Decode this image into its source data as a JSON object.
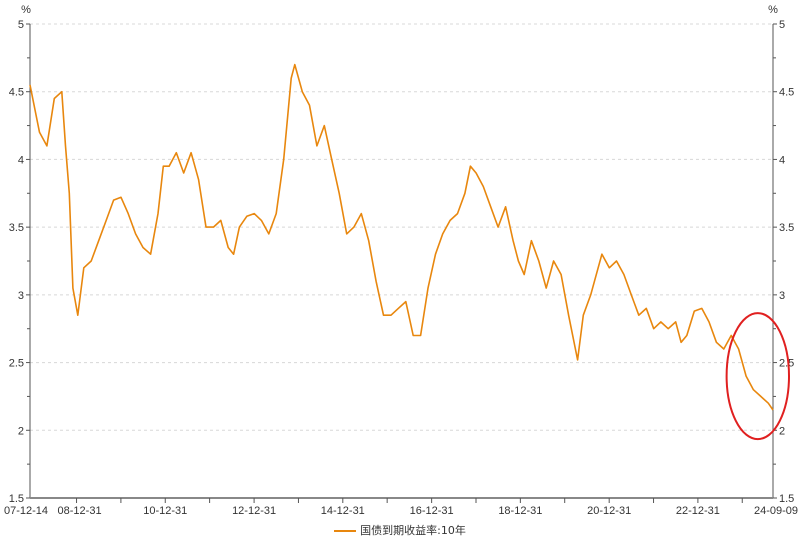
{
  "chart_data": {
    "type": "line",
    "title": "",
    "ylabel_left": "%",
    "ylabel_right": "%",
    "ylim": [
      1.5,
      5
    ],
    "yticks": [
      "1.5",
      "2",
      "2.5",
      "3",
      "3.5",
      "4",
      "4.5",
      "5"
    ],
    "xlim": [
      "2007-12-14",
      "2024-09-09"
    ],
    "xtick_labels": [
      {
        "label": "07-12-14",
        "date": "2007-12-14"
      },
      {
        "label": "08-12-31",
        "date": "2008-12-31"
      },
      {
        "label": "10-12-31",
        "date": "2010-12-31"
      },
      {
        "label": "12-12-31",
        "date": "2012-12-31"
      },
      {
        "label": "14-12-31",
        "date": "2014-12-31"
      },
      {
        "label": "16-12-31",
        "date": "2016-12-31"
      },
      {
        "label": "18-12-31",
        "date": "2018-12-31"
      },
      {
        "label": "20-12-31",
        "date": "2020-12-31"
      },
      {
        "label": "22-12-31",
        "date": "2022-12-31"
      },
      {
        "label": "24-09-09",
        "date": "2024-09-09"
      }
    ],
    "grid": true,
    "legend_position": "bottom",
    "series": [
      {
        "name": "国债到期收益率:10年",
        "color": "#E8870E",
        "points": [
          [
            "2007-12-14",
            4.55
          ],
          [
            "2008-03-01",
            4.2
          ],
          [
            "2008-05-01",
            4.1
          ],
          [
            "2008-07-01",
            4.45
          ],
          [
            "2008-09-01",
            4.5
          ],
          [
            "2008-10-01",
            4.1
          ],
          [
            "2008-11-01",
            3.75
          ],
          [
            "2008-12-01",
            3.05
          ],
          [
            "2009-01-10",
            2.85
          ],
          [
            "2009-03-01",
            3.2
          ],
          [
            "2009-05-01",
            3.25
          ],
          [
            "2009-07-01",
            3.4
          ],
          [
            "2009-09-01",
            3.55
          ],
          [
            "2009-11-01",
            3.7
          ],
          [
            "2010-01-01",
            3.72
          ],
          [
            "2010-03-01",
            3.6
          ],
          [
            "2010-05-01",
            3.45
          ],
          [
            "2010-07-01",
            3.35
          ],
          [
            "2010-09-01",
            3.3
          ],
          [
            "2010-11-01",
            3.6
          ],
          [
            "2010-12-15",
            3.95
          ],
          [
            "2011-02-01",
            3.95
          ],
          [
            "2011-04-01",
            4.05
          ],
          [
            "2011-06-01",
            3.9
          ],
          [
            "2011-08-01",
            4.05
          ],
          [
            "2011-10-01",
            3.85
          ],
          [
            "2011-12-01",
            3.5
          ],
          [
            "2012-02-01",
            3.5
          ],
          [
            "2012-04-01",
            3.55
          ],
          [
            "2012-06-01",
            3.35
          ],
          [
            "2012-07-15",
            3.3
          ],
          [
            "2012-09-01",
            3.5
          ],
          [
            "2012-11-01",
            3.58
          ],
          [
            "2013-01-01",
            3.6
          ],
          [
            "2013-03-01",
            3.55
          ],
          [
            "2013-05-01",
            3.45
          ],
          [
            "2013-07-01",
            3.6
          ],
          [
            "2013-09-01",
            4.0
          ],
          [
            "2013-11-01",
            4.6
          ],
          [
            "2013-12-01",
            4.7
          ],
          [
            "2014-02-01",
            4.5
          ],
          [
            "2014-04-01",
            4.4
          ],
          [
            "2014-06-01",
            4.1
          ],
          [
            "2014-08-01",
            4.25
          ],
          [
            "2014-10-01",
            4.0
          ],
          [
            "2014-12-01",
            3.75
          ],
          [
            "2015-02-01",
            3.45
          ],
          [
            "2015-04-01",
            3.5
          ],
          [
            "2015-06-01",
            3.6
          ],
          [
            "2015-08-01",
            3.4
          ],
          [
            "2015-10-01",
            3.1
          ],
          [
            "2015-12-01",
            2.85
          ],
          [
            "2016-02-01",
            2.85
          ],
          [
            "2016-04-01",
            2.9
          ],
          [
            "2016-06-01",
            2.95
          ],
          [
            "2016-08-01",
            2.7
          ],
          [
            "2016-10-01",
            2.7
          ],
          [
            "2016-12-01",
            3.05
          ],
          [
            "2017-02-01",
            3.3
          ],
          [
            "2017-04-01",
            3.45
          ],
          [
            "2017-06-01",
            3.55
          ],
          [
            "2017-08-01",
            3.6
          ],
          [
            "2017-10-01",
            3.75
          ],
          [
            "2017-11-15",
            3.95
          ],
          [
            "2018-01-01",
            3.9
          ],
          [
            "2018-03-01",
            3.8
          ],
          [
            "2018-05-01",
            3.65
          ],
          [
            "2018-07-01",
            3.5
          ],
          [
            "2018-09-01",
            3.65
          ],
          [
            "2018-11-01",
            3.4
          ],
          [
            "2018-12-15",
            3.25
          ],
          [
            "2019-02-01",
            3.15
          ],
          [
            "2019-04-01",
            3.4
          ],
          [
            "2019-06-01",
            3.25
          ],
          [
            "2019-08-01",
            3.05
          ],
          [
            "2019-10-01",
            3.25
          ],
          [
            "2019-12-01",
            3.15
          ],
          [
            "2020-02-01",
            2.85
          ],
          [
            "2020-04-15",
            2.52
          ],
          [
            "2020-06-01",
            2.85
          ],
          [
            "2020-08-01",
            3.0
          ],
          [
            "2020-11-01",
            3.3
          ],
          [
            "2021-01-01",
            3.2
          ],
          [
            "2021-03-01",
            3.25
          ],
          [
            "2021-05-01",
            3.15
          ],
          [
            "2021-07-01",
            3.0
          ],
          [
            "2021-09-01",
            2.85
          ],
          [
            "2021-11-01",
            2.9
          ],
          [
            "2022-01-01",
            2.75
          ],
          [
            "2022-03-01",
            2.8
          ],
          [
            "2022-05-01",
            2.75
          ],
          [
            "2022-07-01",
            2.8
          ],
          [
            "2022-08-15",
            2.65
          ],
          [
            "2022-10-01",
            2.7
          ],
          [
            "2022-12-01",
            2.88
          ],
          [
            "2023-02-01",
            2.9
          ],
          [
            "2023-04-01",
            2.8
          ],
          [
            "2023-06-01",
            2.65
          ],
          [
            "2023-08-01",
            2.6
          ],
          [
            "2023-10-01",
            2.7
          ],
          [
            "2023-12-01",
            2.6
          ],
          [
            "2024-02-01",
            2.4
          ],
          [
            "2024-04-01",
            2.3
          ],
          [
            "2024-06-01",
            2.25
          ],
          [
            "2024-08-01",
            2.2
          ],
          [
            "2024-09-09",
            2.15
          ]
        ]
      }
    ],
    "annotations": [
      {
        "type": "ellipse",
        "color": "#E02020",
        "around": [
          "2023-12-01",
          "2024-09-09"
        ]
      }
    ]
  }
}
